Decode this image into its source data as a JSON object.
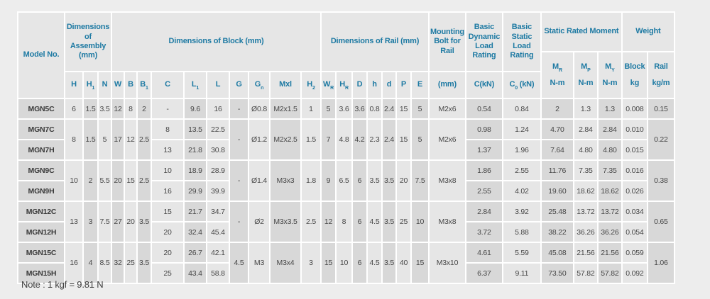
{
  "page": {
    "note": "Note : 1 kgf = 9.81 N"
  },
  "colors": {
    "accent_teal": "#1e7aa3",
    "cell_light": "#e6e6e6",
    "cell_dark": "#d8d8d8",
    "separator": "#ffffff",
    "page_bg": "#ededed",
    "text": "#474747"
  },
  "header": {
    "model_label": "Model No.",
    "groups": {
      "assembly": "Dimensions of Assembly (mm)",
      "block": "Dimensions of Block (mm)",
      "rail": "Dimensions of Rail (mm)",
      "mounting_bolt": "Mounting Bolt for Rail",
      "dynamic_load": "Basic Dynamic Load Rating",
      "static_load": "Basic Static Load Rating",
      "moment": "Static Rated Moment",
      "weight": "Weight"
    },
    "cols": {
      "H": {
        "base": "H"
      },
      "H1": {
        "base": "H",
        "sub": "1"
      },
      "N": {
        "base": "N"
      },
      "W": {
        "base": "W"
      },
      "B": {
        "base": "B"
      },
      "B1": {
        "base": "B",
        "sub": "1"
      },
      "C": {
        "base": "C"
      },
      "L1": {
        "base": "L",
        "sub": "1"
      },
      "L": {
        "base": "L"
      },
      "G": {
        "base": "G"
      },
      "Gn": {
        "base": "G",
        "sub": "n"
      },
      "Mxl": {
        "base": "Mxl"
      },
      "H2": {
        "base": "H",
        "sub": "2"
      },
      "WR": {
        "base": "W",
        "sub": "R"
      },
      "HR": {
        "base": "H",
        "sub": "R"
      },
      "D": {
        "base": "D"
      },
      "h": {
        "base": "h"
      },
      "d": {
        "base": "d"
      },
      "P": {
        "base": "P"
      },
      "E": {
        "base": "E"
      },
      "mm": {
        "base": "(mm)"
      },
      "CkN": {
        "base": "C",
        "suffix": "(kN)"
      },
      "C0kN": {
        "base": "C",
        "sub": "0",
        "suffix": " (kN)"
      }
    },
    "moment_weight": {
      "MR": {
        "base": "M",
        "sub": "R",
        "unit": "N-m"
      },
      "MP": {
        "base": "M",
        "sub": "P",
        "unit": "N-m"
      },
      "MY": {
        "base": "M",
        "sub": "Y",
        "unit": "N-m"
      },
      "block": {
        "label": "Block",
        "unit": "kg"
      },
      "rail": {
        "label": "Rail",
        "unit": "kg/m"
      }
    }
  },
  "table": {
    "groups": [
      {
        "shared": {
          "H": "6",
          "H1": "1.5",
          "N": "3.5",
          "W": "12",
          "B": "8",
          "B1": "2",
          "G": "-",
          "Gn": "Ø0.8",
          "Mxl": "M2x1.5",
          "H2": "1",
          "WR": "5",
          "HR": "3.6",
          "D": "3.6",
          "h": "0.8",
          "d": "2.4",
          "P": "15",
          "E": "5",
          "bolt": "M2x6",
          "rail_kgm": "0.15"
        },
        "rows": [
          {
            "model": "MGN5C",
            "C": "-",
            "L1": "9.6",
            "L": "16",
            "C_kN": "0.54",
            "C0_kN": "0.84",
            "MR": "2",
            "MP": "1.3",
            "MY": "1.3",
            "block_kg": "0.008"
          }
        ]
      },
      {
        "shared": {
          "H": "8",
          "H1": "1.5",
          "N": "5",
          "W": "17",
          "B": "12",
          "B1": "2.5",
          "G": "-",
          "Gn": "Ø1.2",
          "Mxl": "M2x2.5",
          "H2": "1.5",
          "WR": "7",
          "HR": "4.8",
          "D": "4.2",
          "h": "2.3",
          "d": "2.4",
          "P": "15",
          "E": "5",
          "bolt": "M2x6",
          "rail_kgm": "0.22"
        },
        "rows": [
          {
            "model": "MGN7C",
            "C": "8",
            "L1": "13.5",
            "L": "22.5",
            "C_kN": "0.98",
            "C0_kN": "1.24",
            "MR": "4.70",
            "MP": "2.84",
            "MY": "2.84",
            "block_kg": "0.010"
          },
          {
            "model": "MGN7H",
            "C": "13",
            "L1": "21.8",
            "L": "30.8",
            "C_kN": "1.37",
            "C0_kN": "1.96",
            "MR": "7.64",
            "MP": "4.80",
            "MY": "4.80",
            "block_kg": "0.015"
          }
        ]
      },
      {
        "shared": {
          "H": "10",
          "H1": "2",
          "N": "5.5",
          "W": "20",
          "B": "15",
          "B1": "2.5",
          "G": "-",
          "Gn": "Ø1.4",
          "Mxl": "M3x3",
          "H2": "1.8",
          "WR": "9",
          "HR": "6.5",
          "D": "6",
          "h": "3.5",
          "d": "3.5",
          "P": "20",
          "E": "7.5",
          "bolt": "M3x8",
          "rail_kgm": "0.38"
        },
        "rows": [
          {
            "model": "MGN9C",
            "C": "10",
            "L1": "18.9",
            "L": "28.9",
            "C_kN": "1.86",
            "C0_kN": "2.55",
            "MR": "11.76",
            "MP": "7.35",
            "MY": "7.35",
            "block_kg": "0.016"
          },
          {
            "model": "MGN9H",
            "C": "16",
            "L1": "29.9",
            "L": "39.9",
            "C_kN": "2.55",
            "C0_kN": "4.02",
            "MR": "19.60",
            "MP": "18.62",
            "MY": "18.62",
            "block_kg": "0.026"
          }
        ]
      },
      {
        "shared": {
          "H": "13",
          "H1": "3",
          "N": "7.5",
          "W": "27",
          "B": "20",
          "B1": "3.5",
          "G": "-",
          "Gn": "Ø2",
          "Mxl": "M3x3.5",
          "H2": "2.5",
          "WR": "12",
          "HR": "8",
          "D": "6",
          "h": "4.5",
          "d": "3.5",
          "P": "25",
          "E": "10",
          "bolt": "M3x8",
          "rail_kgm": "0.65"
        },
        "rows": [
          {
            "model": "MGN12C",
            "C": "15",
            "L1": "21.7",
            "L": "34.7",
            "C_kN": "2.84",
            "C0_kN": "3.92",
            "MR": "25.48",
            "MP": "13.72",
            "MY": "13.72",
            "block_kg": "0.034"
          },
          {
            "model": "MGN12H",
            "C": "20",
            "L1": "32.4",
            "L": "45.4",
            "C_kN": "3.72",
            "C0_kN": "5.88",
            "MR": "38.22",
            "MP": "36.26",
            "MY": "36.26",
            "block_kg": "0.054"
          }
        ]
      },
      {
        "shared": {
          "H": "16",
          "H1": "4",
          "N": "8.5",
          "W": "32",
          "B": "25",
          "B1": "3.5",
          "G": "4.5",
          "Gn": "M3",
          "Mxl": "M3x4",
          "H2": "3",
          "WR": "15",
          "HR": "10",
          "D": "6",
          "h": "4.5",
          "d": "3.5",
          "P": "40",
          "E": "15",
          "bolt": "M3x10",
          "rail_kgm": "1.06"
        },
        "rows": [
          {
            "model": "MGN15C",
            "C": "20",
            "L1": "26.7",
            "L": "42.1",
            "C_kN": "4.61",
            "C0_kN": "5.59",
            "MR": "45.08",
            "MP": "21.56",
            "MY": "21.56",
            "block_kg": "0.059"
          },
          {
            "model": "MGN15H",
            "C": "25",
            "L1": "43.4",
            "L": "58.8",
            "C_kN": "6.37",
            "C0_kN": "9.11",
            "MR": "73.50",
            "MP": "57.82",
            "MY": "57.82",
            "block_kg": "0.092"
          }
        ]
      }
    ]
  }
}
